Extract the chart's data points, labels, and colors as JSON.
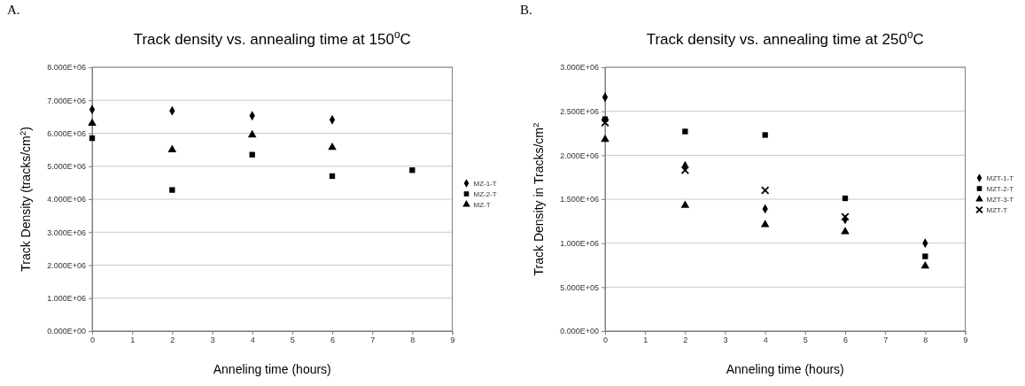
{
  "chart_data": [
    {
      "type": "scatter",
      "title": "Track density vs. annealing time at 150$^{o}$C",
      "xlabel": "Anneling time (hours)",
      "ylabel": "Track Density (tracks/cm$^{2}$)",
      "annotations": [
        "A."
      ],
      "xlim": [
        0,
        9
      ],
      "xticks": [
        0,
        1,
        2,
        3,
        4,
        5,
        6,
        7,
        8,
        9
      ],
      "ylim": [
        0,
        8000000
      ],
      "yticks": [
        {
          "value": 0,
          "label": "0.000E+00"
        },
        {
          "value": 1000000,
          "label": "1.000E+06"
        },
        {
          "value": 2000000,
          "label": "2.000E+06"
        },
        {
          "value": 3000000,
          "label": "3.000E+06"
        },
        {
          "value": 4000000,
          "label": "4.000E+06"
        },
        {
          "value": 5000000,
          "label": "5.000E+06"
        },
        {
          "value": 6000000,
          "label": "6.000E+06"
        },
        {
          "value": 7000000,
          "label": "7.000E+06"
        },
        {
          "value": 8000000,
          "label": "8.000E+06"
        }
      ],
      "grid": "y",
      "legend": "right",
      "series": [
        {
          "name": "MZ-1-T",
          "color": "#000000",
          "marker": "diamond",
          "x": [
            0,
            2,
            4,
            6
          ],
          "values": [
            6720000,
            6680000,
            6530000,
            6410000
          ]
        },
        {
          "name": "MZ-2-T",
          "color": "#000000",
          "marker": "square",
          "x": [
            0,
            2,
            4,
            6,
            8
          ],
          "values": [
            5850000,
            4280000,
            5350000,
            4700000,
            4880000
          ]
        },
        {
          "name": "MZ-T",
          "color": "#000000",
          "marker": "triangle",
          "x": [
            0,
            2,
            4,
            6
          ],
          "values": [
            6300000,
            5500000,
            5950000,
            5570000
          ]
        }
      ]
    },
    {
      "type": "scatter",
      "title": "Track density vs. annealing time at 250$^{o}$C",
      "xlabel": "Anneling time (hours)",
      "ylabel": "Track Density in Tracks/cm$^{2}$",
      "annotations": [
        "B."
      ],
      "xlim": [
        0,
        9
      ],
      "xticks": [
        0,
        1,
        2,
        3,
        4,
        5,
        6,
        7,
        8,
        9
      ],
      "ylim": [
        0,
        3000000
      ],
      "yticks": [
        {
          "value": 0,
          "label": "0.000E+00"
        },
        {
          "value": 500000,
          "label": "5.000E+05"
        },
        {
          "value": 1000000,
          "label": "1.000E+06"
        },
        {
          "value": 1500000,
          "label": "1.500E+06"
        },
        {
          "value": 2000000,
          "label": "2.000E+06"
        },
        {
          "value": 2500000,
          "label": "2.500E+06"
        },
        {
          "value": 3000000,
          "label": "3.000E+06"
        }
      ],
      "grid": "y",
      "legend": "right",
      "series": [
        {
          "name": "MZT-1-T",
          "color": "#000000",
          "marker": "diamond",
          "x": [
            0,
            2,
            4,
            6,
            8
          ],
          "values": [
            2660000,
            1880000,
            1390000,
            1270000,
            1000000
          ]
        },
        {
          "name": "MZT-2-T",
          "color": "#000000",
          "marker": "square",
          "x": [
            0,
            2,
            4,
            6,
            8
          ],
          "values": [
            2410000,
            2270000,
            2230000,
            1510000,
            850000
          ]
        },
        {
          "name": "MZT-3-T",
          "color": "#000000",
          "marker": "triangle",
          "x": [
            0,
            2,
            4,
            6,
            8
          ],
          "values": [
            2180000,
            1430000,
            1210000,
            1130000,
            740000
          ]
        },
        {
          "name": "MZT-T",
          "color": "#000000",
          "marker": "cross",
          "x": [
            0,
            2,
            4,
            6
          ],
          "values": [
            2370000,
            1830000,
            1600000,
            1300000
          ]
        }
      ]
    }
  ]
}
